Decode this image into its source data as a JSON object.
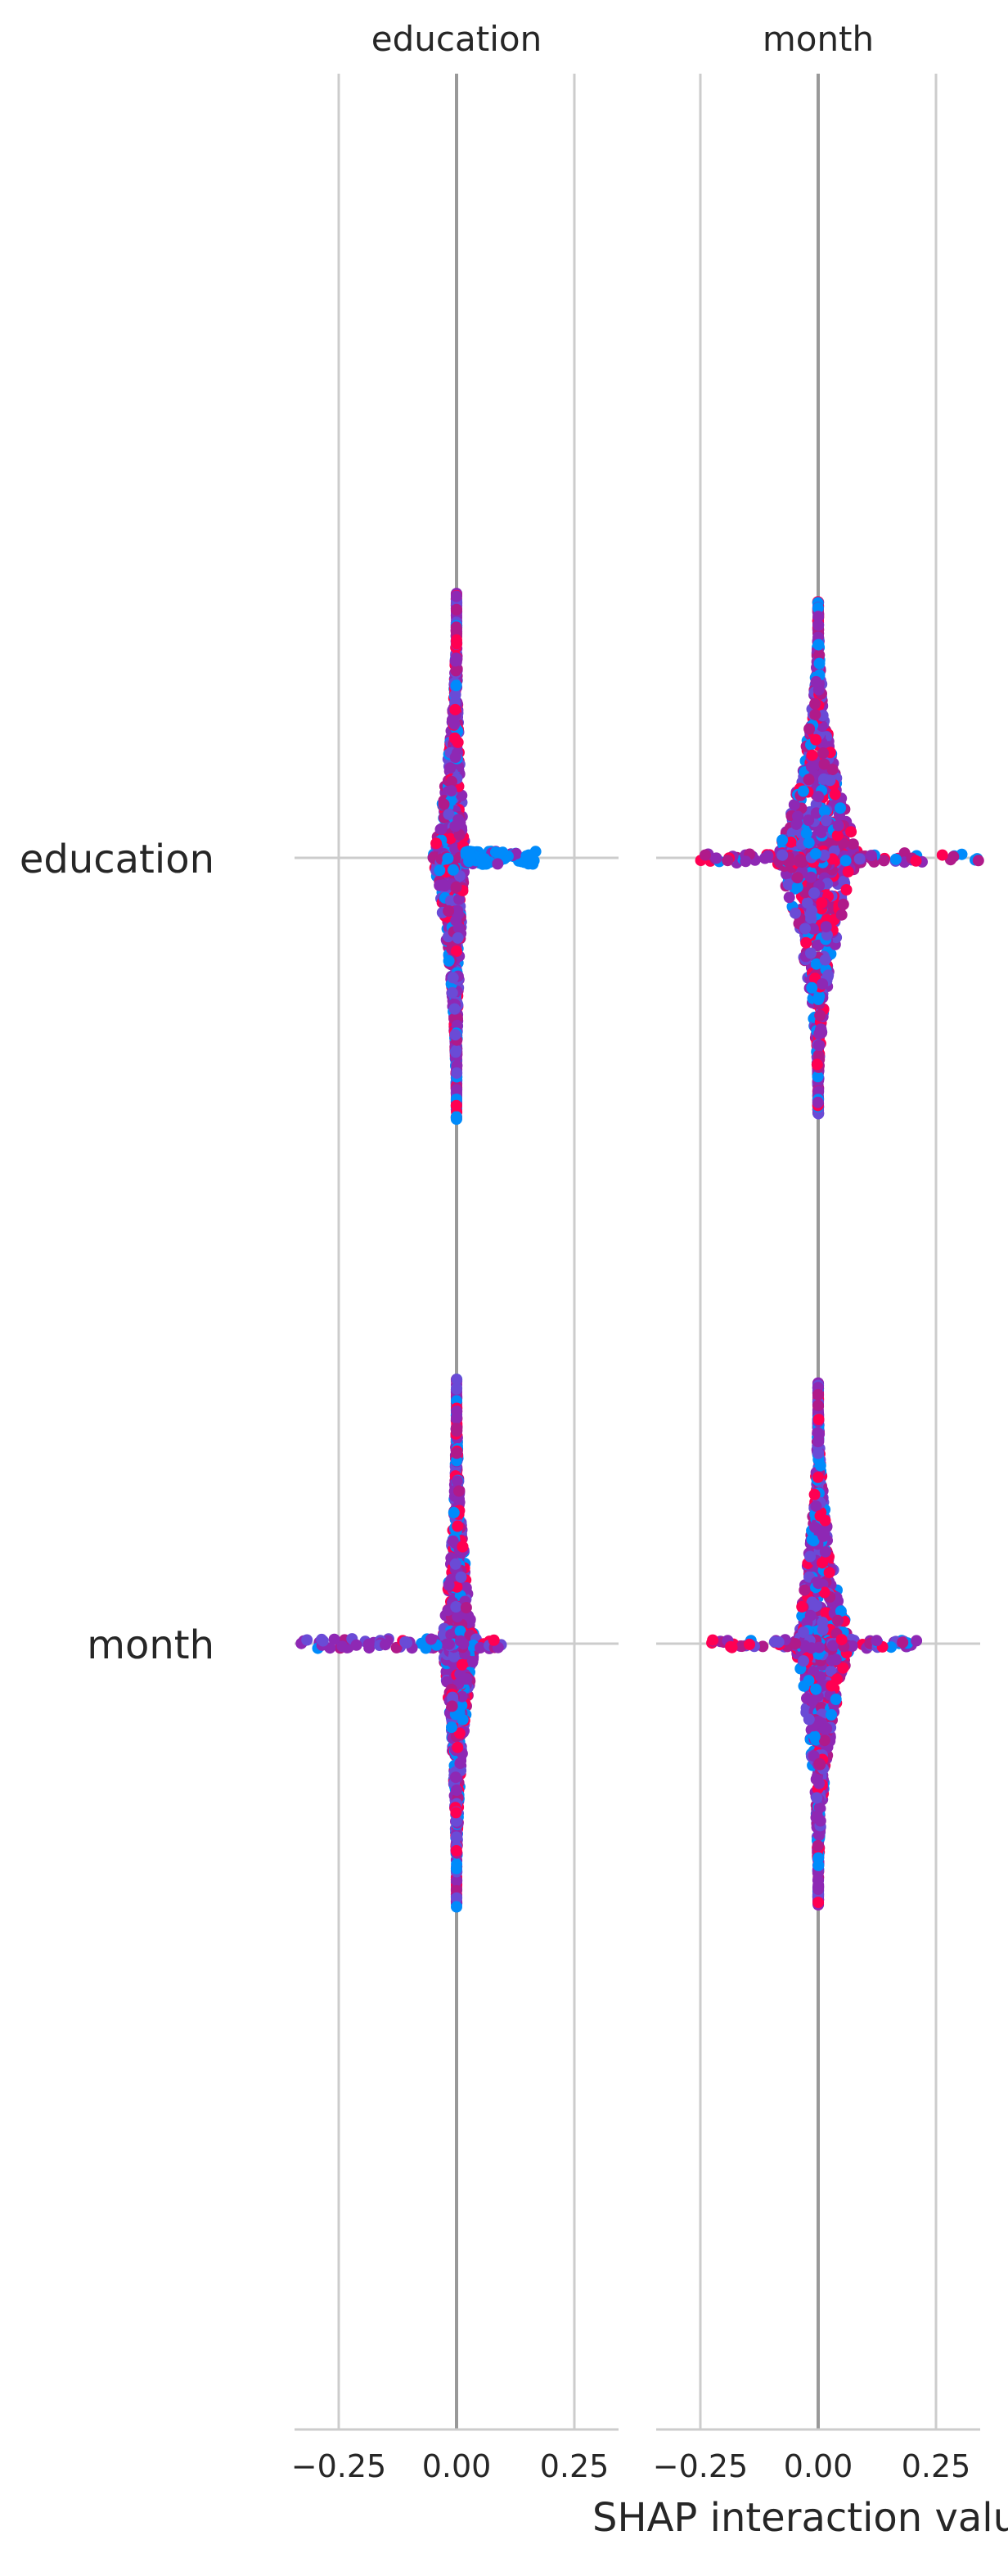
{
  "chart_data": {
    "type": "scatter",
    "subtype": "shap-interaction-beeswarm-matrix",
    "features": [
      "education",
      "month"
    ],
    "column_titles": [
      "education",
      "month"
    ],
    "row_labels": [
      "education",
      "month"
    ],
    "xlabel": "SHAP interaction valu",
    "x_ticks": [
      -0.25,
      0.0,
      0.25
    ],
    "x_tick_labels": [
      "−0.25",
      "0.00",
      "0.25"
    ],
    "xlim": [
      -0.34,
      0.34
    ],
    "grid": "vertical",
    "colors": {
      "low": "#008bfb",
      "mid": "#8e28b4",
      "high": "#ff0052",
      "zero_line": "#999999",
      "grid": "#cccccc"
    },
    "panels": [
      {
        "row": "education",
        "col": "education",
        "center_spread": [
          -0.05,
          0.02
        ],
        "positive_tail": [
          0.02,
          0.17
        ],
        "vertical_extent": 0.95,
        "tail_color": "low"
      },
      {
        "row": "education",
        "col": "month",
        "center_spread": [
          -0.09,
          0.09
        ],
        "horizontal_range": [
          -0.25,
          0.34
        ],
        "vertical_extent": 0.92
      },
      {
        "row": "month",
        "col": "education",
        "center_spread": [
          -0.03,
          0.04
        ],
        "horizontal_range": [
          -0.33,
          0.1
        ],
        "vertical_extent": 0.95
      },
      {
        "row": "month",
        "col": "month",
        "center_spread": [
          -0.05,
          0.07
        ],
        "horizontal_range": [
          -0.23,
          0.21
        ],
        "vertical_extent": 0.94
      }
    ]
  }
}
